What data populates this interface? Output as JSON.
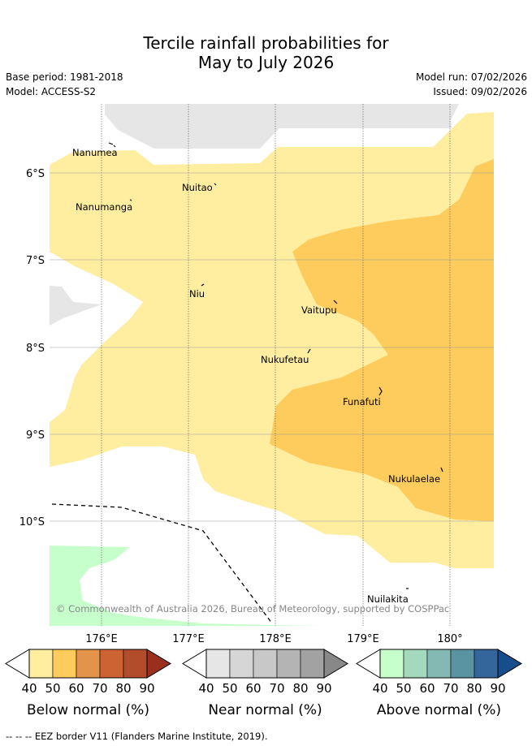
{
  "title": {
    "line1": "Tercile rainfall probabilities for",
    "line2": "May to July 2026"
  },
  "meta": {
    "base_period": "Base period: 1981-2018",
    "model": "Model: ACCESS-S2",
    "model_run": "Model run: 07/02/2026",
    "issued": "Issued: 09/02/2026"
  },
  "map": {
    "lat_labels": [
      "6°S",
      "7°S",
      "8°S",
      "9°S",
      "10°S"
    ],
    "lon_labels": [
      "176°E",
      "177°E",
      "178°E",
      "179°E",
      "180°"
    ],
    "places": [
      "Nanumea",
      "Nuitao",
      "Nanumanga",
      "Niu",
      "Vaitupu",
      "Nukufetau",
      "Funafuti",
      "Nukulaelae",
      "Nuilakita"
    ],
    "attribution": "© Commonwealth of Australia 2026, Bureau of Meteorology, supported by COSPPac"
  },
  "legend": {
    "tick_labels": [
      "40",
      "50",
      "60",
      "70",
      "80",
      "90"
    ],
    "below": {
      "title": "Below normal (%)",
      "colors": [
        "#ffeda0",
        "#fecc5c",
        "#e3934a",
        "#cd6232",
        "#b24c2a",
        "#9a2f1e"
      ]
    },
    "near": {
      "title": "Near normal (%)",
      "colors": [
        "#e6e6e6",
        "#d6d6d6",
        "#c8c8c8",
        "#b4b4b4",
        "#a2a2a2",
        "#888888"
      ]
    },
    "above": {
      "title": "Above normal (%)",
      "colors": [
        "#c7ffcc",
        "#a4d9bd",
        "#84b9b3",
        "#5a94a3",
        "#34669c",
        "#174d8a"
      ]
    }
  },
  "footnote": "--  --  -- EEZ border V11 (Flanders Marine Institute, 2019)."
}
